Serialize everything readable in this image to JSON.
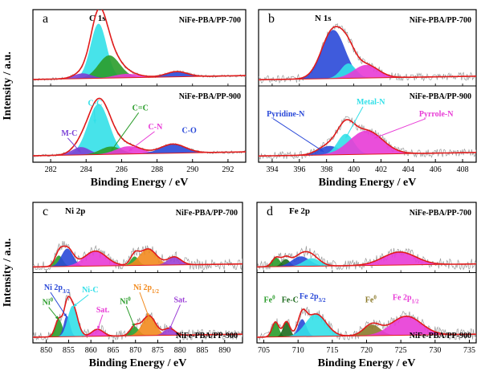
{
  "chart_data": [
    {
      "type": "area",
      "panel_letter": "a",
      "core_level": "C 1s",
      "xlabel": "Binding Energy / eV",
      "ylabel": "Intensity / a.u.",
      "xlim": [
        281,
        293
      ],
      "xticks": [
        282,
        284,
        286,
        288,
        290,
        292
      ],
      "reverse_x": false,
      "noise": 0.02,
      "samples": [
        {
          "label": "NiFe-PBA/PP-700",
          "ylim": [
            0,
            1.05
          ],
          "peaks": [
            {
              "name": "C-C",
              "center": 284.7,
              "width": 0.45,
              "height": 0.84,
              "color": "#33e0e8"
            },
            {
              "name": "C=C",
              "center": 285.3,
              "width": 0.6,
              "height": 0.35,
              "color": "#2a9c2a"
            },
            {
              "name": "M-C",
              "center": 283.8,
              "width": 0.5,
              "height": 0.08,
              "color": "#7a3fd6"
            },
            {
              "name": "C-N",
              "center": 286.3,
              "width": 0.7,
              "height": 0.06,
              "color": "#e83bd6"
            },
            {
              "name": "C-O",
              "center": 289.1,
              "width": 0.6,
              "height": 0.08,
              "color": "#2a49d8"
            }
          ]
        },
        {
          "label": "NiFe-PBA/PP-900",
          "ylim": [
            0,
            1.05
          ],
          "peaks": [
            {
              "name": "C-C",
              "center": 284.7,
              "width": 0.6,
              "height": 0.78,
              "color": "#33e0e8"
            },
            {
              "name": "M-C",
              "center": 283.7,
              "width": 0.5,
              "height": 0.12,
              "color": "#7a3fd6"
            },
            {
              "name": "C=C",
              "center": 285.4,
              "width": 0.6,
              "height": 0.12,
              "color": "#2a9c2a"
            },
            {
              "name": "C-N",
              "center": 286.4,
              "width": 0.7,
              "height": 0.12,
              "color": "#e83bd6"
            },
            {
              "name": "C-O",
              "center": 288.9,
              "width": 0.7,
              "height": 0.14,
              "color": "#2a49d8"
            }
          ]
        }
      ],
      "annotations": [
        {
          "text": "C-C",
          "color": "#33e0e8",
          "sample": 1,
          "x": 284.1,
          "y": 0.82,
          "arrow_to": [
            284.5,
            0.55
          ]
        },
        {
          "text": "C=C",
          "color": "#2a9c2a",
          "sample": 1,
          "x": 286.6,
          "y": 0.75,
          "arrow_to": [
            285.4,
            0.12
          ]
        },
        {
          "text": "C-N",
          "color": "#e83bd6",
          "sample": 1,
          "x": 287.5,
          "y": 0.46,
          "arrow_to": [
            286.4,
            0.12
          ]
        },
        {
          "text": "M-C",
          "color": "#7a3fd6",
          "sample": 1,
          "x": 282.6,
          "y": 0.36,
          "arrow_to": [
            283.7,
            0.1
          ]
        },
        {
          "text": "C-O",
          "color": "#2a49d8",
          "sample": 1,
          "x": 289.4,
          "y": 0.4,
          "arrow_to": null
        }
      ]
    },
    {
      "type": "area",
      "panel_letter": "b",
      "core_level": "N 1s",
      "xlabel": "Binding Energy / eV",
      "ylabel": "",
      "xlim": [
        393,
        409
      ],
      "xticks": [
        394,
        396,
        398,
        400,
        402,
        404,
        406,
        408
      ],
      "reverse_x": false,
      "noise": 0.06,
      "samples": [
        {
          "label": "NiFe-PBA/PP-700",
          "ylim": [
            0,
            1.15
          ],
          "peaks": [
            {
              "name": "Pyridine-N",
              "center": 398.5,
              "width": 0.85,
              "height": 0.82,
              "color": "#2a49d8"
            },
            {
              "name": "Metal-N",
              "center": 399.6,
              "width": 0.55,
              "height": 0.25,
              "color": "#33e0e8"
            },
            {
              "name": "Pyrrole-N",
              "center": 400.9,
              "width": 0.9,
              "height": 0.22,
              "color": "#e83bd6"
            }
          ]
        },
        {
          "label": "NiFe-PBA/PP-900",
          "ylim": [
            0,
            1.15
          ],
          "peaks": [
            {
              "name": "Pyridine-N",
              "center": 398.2,
              "width": 0.8,
              "height": 0.15,
              "color": "#2a49d8"
            },
            {
              "name": "Metal-N",
              "center": 399.4,
              "width": 0.6,
              "height": 0.35,
              "color": "#33e0e8"
            },
            {
              "name": "Pyrrole-N",
              "center": 400.9,
              "width": 1.2,
              "height": 0.4,
              "color": "#e83bd6"
            }
          ]
        }
      ],
      "annotations": [
        {
          "text": "Metal-N",
          "color": "#33e0e8",
          "sample": 1,
          "x": 400.2,
          "y": 0.92,
          "arrow_to": [
            399.4,
            0.35
          ]
        },
        {
          "text": "Pyridine-N",
          "color": "#2a49d8",
          "sample": 1,
          "x": 393.6,
          "y": 0.72,
          "arrow_to": [
            397.8,
            0.12
          ]
        },
        {
          "text": "Pyrrole-N",
          "color": "#e83bd6",
          "sample": 1,
          "x": 404.8,
          "y": 0.72,
          "arrow_to": [
            401.5,
            0.35
          ]
        }
      ]
    },
    {
      "type": "area",
      "panel_letter": "c",
      "core_level": "Ni 2p",
      "xlabel": "Binding Energy / eV",
      "ylabel": "Intensity / a.u.",
      "xlim": [
        847,
        894
      ],
      "xticks": [
        850,
        855,
        860,
        865,
        870,
        875,
        880,
        885,
        890
      ],
      "reverse_x": false,
      "noise": 0.09,
      "samples": [
        {
          "label": "NiFe-PBA/PP-700",
          "ylim": [
            0,
            1.25
          ],
          "peaks": [
            {
              "name": "Ni0",
              "center": 852.8,
              "width": 0.9,
              "height": 0.22,
              "color": "#2a9c2a"
            },
            {
              "name": "Ni 2p3/2",
              "center": 854.7,
              "width": 1.3,
              "height": 0.36,
              "color": "#2a49d8"
            },
            {
              "name": "Sat.",
              "center": 861.0,
              "width": 2.5,
              "height": 0.3,
              "color": "#e83bd6"
            },
            {
              "name": "Ni0",
              "center": 869.8,
              "width": 0.9,
              "height": 0.18,
              "color": "#2a9c2a"
            },
            {
              "name": "Ni 2p1/2",
              "center": 872.8,
              "width": 1.9,
              "height": 0.33,
              "color": "#f28a1e"
            },
            {
              "name": "Sat.",
              "center": 878.7,
              "width": 1.5,
              "height": 0.16,
              "color": "#9b3fd6"
            }
          ]
        },
        {
          "label": "NiFe-PBA/PP-900",
          "ylim": [
            0,
            1.25
          ],
          "peaks": [
            {
              "name": "Ni0",
              "center": 852.8,
              "width": 0.8,
              "height": 0.35,
              "color": "#2a9c2a"
            },
            {
              "name": "Ni 2p3/2",
              "center": 854.6,
              "width": 0.7,
              "height": 0.42,
              "color": "#2a49d8"
            },
            {
              "name": "Ni-C",
              "center": 855.9,
              "width": 1.1,
              "height": 0.62,
              "color": "#33e0e8"
            },
            {
              "name": "Sat.",
              "center": 861.5,
              "width": 1.3,
              "height": 0.14,
              "color": "#e83bd6"
            },
            {
              "name": "Ni0",
              "center": 869.8,
              "width": 1.0,
              "height": 0.18,
              "color": "#2a9c2a"
            },
            {
              "name": "Ni 2p1/2",
              "center": 873.0,
              "width": 1.5,
              "height": 0.4,
              "color": "#f28a1e"
            },
            {
              "name": "Sat.",
              "center": 877.6,
              "width": 1.2,
              "height": 0.14,
              "color": "#9b3fd6"
            }
          ]
        }
      ],
      "annotations": [
        {
          "text": "Ni 2p3/2",
          "color": "#2a49d8",
          "sample": 1,
          "x": 849.5,
          "y": 1.0,
          "arrow_to": [
            854.6,
            0.45
          ]
        },
        {
          "text": "Ni-C",
          "color": "#33e0e8",
          "sample": 1,
          "x": 858.0,
          "y": 0.95,
          "arrow_to": [
            856.0,
            0.66
          ]
        },
        {
          "text": "Ni0",
          "color": "#2a9c2a",
          "sample": 1,
          "x": 849.1,
          "y": 0.7,
          "arrow_to": [
            852.8,
            0.4
          ]
        },
        {
          "text": "Sat.",
          "color": "#e83bd6",
          "sample": 1,
          "x": 861.2,
          "y": 0.55,
          "arrow_to": [
            861.5,
            0.2
          ]
        },
        {
          "text": "Ni0",
          "color": "#2a9c2a",
          "sample": 1,
          "x": 866.5,
          "y": 0.72,
          "arrow_to": [
            869.8,
            0.25
          ]
        },
        {
          "text": "Ni 2p1/2",
          "color": "#f28a1e",
          "sample": 1,
          "x": 869.5,
          "y": 1.0,
          "arrow_to": [
            873.0,
            0.45
          ]
        },
        {
          "text": "Sat.",
          "color": "#9b3fd6",
          "sample": 1,
          "x": 878.6,
          "y": 0.75,
          "arrow_to": [
            877.6,
            0.2
          ]
        }
      ]
    },
    {
      "type": "area",
      "panel_letter": "d",
      "core_level": "Fe 2p",
      "xlabel": "Binding Energy / eV",
      "ylabel": "",
      "xlim": [
        704,
        736
      ],
      "xticks": [
        705,
        710,
        715,
        720,
        725,
        730,
        735
      ],
      "reverse_x": false,
      "noise": 0.09,
      "samples": [
        {
          "label": "NiFe-PBA/PP-700",
          "ylim": [
            0,
            1.25
          ],
          "peaks": [
            {
              "name": "Fe0",
              "center": 706.8,
              "width": 0.6,
              "height": 0.18,
              "color": "#2a9c2a"
            },
            {
              "name": "Fe-C",
              "center": 708.2,
              "width": 0.6,
              "height": 0.15,
              "color": "#1e6b1e"
            },
            {
              "name": "Fe 2p3/2",
              "center": 710.4,
              "width": 1.3,
              "height": 0.2,
              "color": "#2a49d8"
            },
            {
              "name": "Fe 2p3/2",
              "center": 712.0,
              "width": 1.2,
              "height": 0.16,
              "color": "#33e0e8"
            },
            {
              "name": "Fe 2p1/2",
              "center": 724.8,
              "width": 2.4,
              "height": 0.26,
              "color": "#e83bd6"
            }
          ]
        },
        {
          "label": "NiFe-PBA/PP-900",
          "ylim": [
            0,
            1.25
          ],
          "peaks": [
            {
              "name": "Fe0",
              "center": 706.7,
              "width": 0.5,
              "height": 0.3,
              "color": "#2a9c2a"
            },
            {
              "name": "Fe-C",
              "center": 708.3,
              "width": 0.5,
              "height": 0.3,
              "color": "#1e6b1e"
            },
            {
              "name": "Fe 2p3/2",
              "center": 710.6,
              "width": 0.6,
              "height": 0.35,
              "color": "#2a49d8"
            },
            {
              "name": "Fe 2p3/2",
              "center": 712.6,
              "width": 1.5,
              "height": 0.45,
              "color": "#33e0e8"
            },
            {
              "name": "Fe0",
              "center": 720.8,
              "width": 1.2,
              "height": 0.22,
              "color": "#8b7a2a"
            },
            {
              "name": "Fe 2p1/2",
              "center": 725.8,
              "width": 2.2,
              "height": 0.38,
              "color": "#e83bd6"
            }
          ]
        }
      ],
      "annotations": [
        {
          "text": "Fe0",
          "color": "#2a9c2a",
          "sample": 1,
          "x": 705.0,
          "y": 0.75,
          "arrow_to": null
        },
        {
          "text": "Fe-C",
          "color": "#1e6b1e",
          "sample": 1,
          "x": 707.6,
          "y": 0.75,
          "arrow_to": null
        },
        {
          "text": "Fe 2p3/2",
          "color": "#2a49d8",
          "sample": 1,
          "x": 710.2,
          "y": 0.82,
          "arrow_to": null
        },
        {
          "text": "Fe0",
          "color": "#8b7a2a",
          "sample": 1,
          "x": 719.8,
          "y": 0.75,
          "arrow_to": null
        },
        {
          "text": "Fe 2p1/2",
          "color": "#e83bd6",
          "sample": 1,
          "x": 723.8,
          "y": 0.8,
          "arrow_to": null
        }
      ]
    }
  ],
  "colors": {
    "envelope": "#e01b1b",
    "background": "#e01b1b",
    "raw": "#9a9a9a"
  }
}
